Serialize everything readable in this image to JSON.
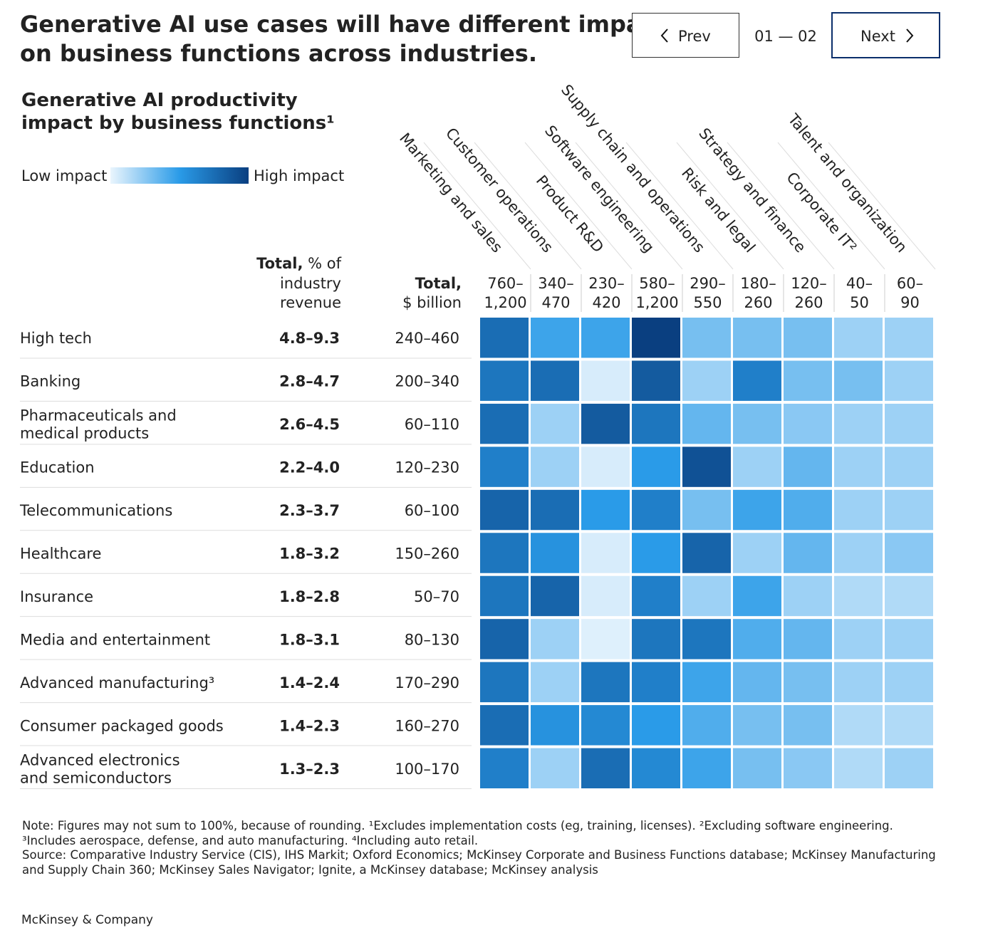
{
  "header": {
    "title_lines": [
      "Generative AI use cases will have different impacts",
      "on business functions across industries."
    ],
    "prev": "Prev",
    "page": "01 — 02",
    "next": "Next"
  },
  "chart_data": {
    "type": "heatmap",
    "subtitle_lines": [
      "Generative AI productivity",
      "impact by business functions¹"
    ],
    "legend": {
      "low": "Low impact",
      "high": "High impact"
    },
    "colorscale": [
      "#eaf5fd",
      "#2a9be8",
      "#0a3f80"
    ],
    "clim": [
      0,
      1
    ],
    "pct_header": {
      "bold": "Total,",
      "lines": [
        "% of",
        "industry",
        "revenue"
      ]
    },
    "usd_header": {
      "bold": "Total,",
      "rest": "$ billion"
    },
    "columns": [
      "Marketing and sales",
      "Customer operations",
      "Product R&D",
      "Software engineering",
      "Supply chain and operations",
      "Risk and legal",
      "Strategy and finance",
      "Corporate IT²",
      "Talent and organization"
    ],
    "column_ranges": [
      [
        "760–",
        "1,200"
      ],
      [
        "340–",
        "470"
      ],
      [
        "230–",
        "420"
      ],
      [
        "580–",
        "1,200"
      ],
      [
        "290–",
        "550"
      ],
      [
        "180–",
        "260"
      ],
      [
        "120–",
        "260"
      ],
      [
        "40–",
        "50"
      ],
      [
        "60–",
        "90"
      ]
    ],
    "rows": [
      [
        "High tech"
      ],
      [
        "Banking"
      ],
      [
        "Pharmaceuticals and",
        "medical products"
      ],
      [
        "Education"
      ],
      [
        "Telecommunications"
      ],
      [
        "Healthcare"
      ],
      [
        "Insurance"
      ],
      [
        "Media and entertainment"
      ],
      [
        "Advanced manufacturing³"
      ],
      [
        "Consumer packaged goods"
      ],
      [
        "Advanced electronics",
        "and semiconductors"
      ]
    ],
    "row_pct": [
      "4.8–9.3",
      "2.8–4.7",
      "2.6–4.5",
      "2.2–4.0",
      "2.3–3.7",
      "1.8–3.2",
      "1.8–2.8",
      "1.8–3.1",
      "1.4–2.4",
      "1.4–2.3",
      "1.3–2.3"
    ],
    "row_usd": [
      "240–460",
      "200–340",
      "60–110",
      "120–230",
      "60–100",
      "150–260",
      "50–70",
      "80–130",
      "170–290",
      "160–270",
      "100–170"
    ],
    "values": [
      [
        0.75,
        0.45,
        0.45,
        1.0,
        0.3,
        0.3,
        0.3,
        0.2,
        0.2
      ],
      [
        0.7,
        0.75,
        0.05,
        0.85,
        0.2,
        0.65,
        0.3,
        0.3,
        0.2
      ],
      [
        0.75,
        0.2,
        0.85,
        0.7,
        0.35,
        0.3,
        0.25,
        0.2,
        0.2
      ],
      [
        0.65,
        0.2,
        0.05,
        0.5,
        0.9,
        0.2,
        0.35,
        0.2,
        0.2
      ],
      [
        0.8,
        0.75,
        0.5,
        0.65,
        0.3,
        0.45,
        0.4,
        0.2,
        0.2
      ],
      [
        0.7,
        0.55,
        0.05,
        0.5,
        0.8,
        0.2,
        0.35,
        0.2,
        0.25
      ],
      [
        0.7,
        0.8,
        0.05,
        0.65,
        0.2,
        0.45,
        0.2,
        0.15,
        0.15
      ],
      [
        0.8,
        0.2,
        0.03,
        0.7,
        0.7,
        0.4,
        0.35,
        0.2,
        0.2
      ],
      [
        0.7,
        0.2,
        0.7,
        0.65,
        0.45,
        0.35,
        0.3,
        0.2,
        0.2
      ],
      [
        0.75,
        0.55,
        0.6,
        0.5,
        0.4,
        0.3,
        0.3,
        0.15,
        0.15
      ],
      [
        0.65,
        0.2,
        0.75,
        0.6,
        0.45,
        0.3,
        0.25,
        0.15,
        0.2
      ]
    ],
    "note_lines": [
      "Note: Figures may not sum to 100%, because of rounding. ¹Excludes implementation costs (eg, training, licenses). ²Excluding software engineering.",
      "³Includes aerospace, defense, and auto manufacturing. ⁴Including auto retail.",
      "Source: Comparative Industry Service (CIS), IHS Markit; Oxford Economics; McKinsey Corporate and Business Functions database; McKinsey Manufacturing",
      "and Supply Chain 360; McKinsey Sales Navigator; Ignite, a McKinsey database; McKinsey analysis"
    ],
    "brand": "McKinsey & Company"
  }
}
